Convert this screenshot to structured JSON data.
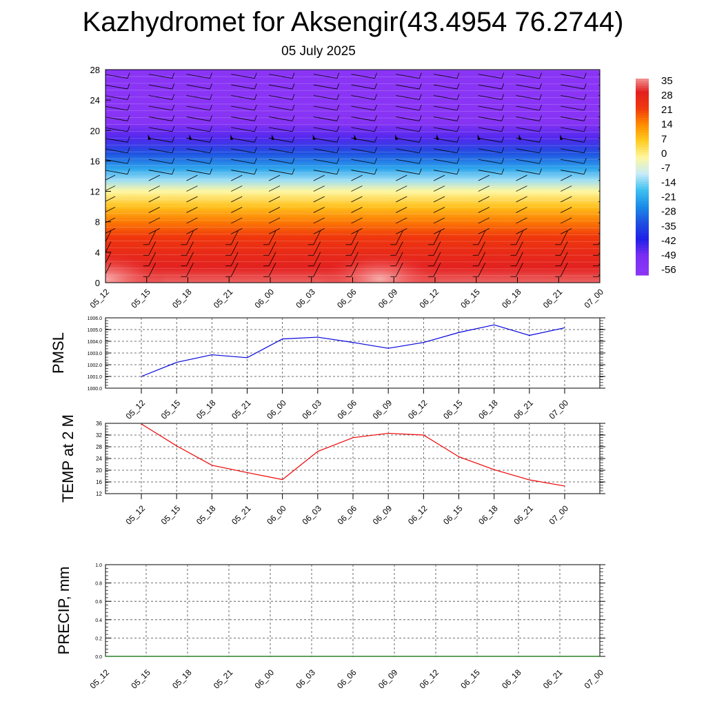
{
  "title": "Kazhydromet for Aksengir(43.4954 76.2744)",
  "subtitle": "05 July 2025",
  "time_labels": [
    "05_12",
    "05_15",
    "05_18",
    "05_21",
    "06_00",
    "06_03",
    "06_06",
    "06_09",
    "06_12",
    "06_15",
    "06_18",
    "06_21",
    "07_00"
  ],
  "chart_data": [
    {
      "type": "heatmap",
      "name": "temperature-cross-section",
      "x": [
        "05_12",
        "05_15",
        "05_18",
        "05_21",
        "06_00",
        "06_03",
        "06_06",
        "06_09",
        "06_12",
        "06_15",
        "06_18",
        "06_21",
        "07_00"
      ],
      "y_ticks": [
        0,
        4,
        8,
        12,
        16,
        20,
        24,
        28
      ],
      "ylim": [
        0,
        28
      ],
      "colorbar": {
        "labels": [
          "35",
          "28",
          "21",
          "14",
          "7",
          "0",
          "-7",
          "-14",
          "-21",
          "-28",
          "-35",
          "-42",
          "-49",
          "-56"
        ],
        "colors": [
          "#f7b0b0",
          "#e22020",
          "#f0380c",
          "#ff8c00",
          "#ffcc22",
          "#fff7a0",
          "#c8ecf8",
          "#40c0f0",
          "#1a8ce8",
          "#1f4fe0",
          "#2020e8",
          "#7a2ff2",
          "#8a35f5"
        ]
      },
      "profile": [
        {
          "h": 0,
          "t": 31
        },
        {
          "h": 2,
          "t": 27
        },
        {
          "h": 4,
          "t": 24
        },
        {
          "h": 6,
          "t": 20
        },
        {
          "h": 8,
          "t": 14
        },
        {
          "h": 10,
          "t": 6
        },
        {
          "h": 12,
          "t": -3
        },
        {
          "h": 13.5,
          "t": -13
        },
        {
          "h": 15,
          "t": -22
        },
        {
          "h": 17,
          "t": -33
        },
        {
          "h": 19,
          "t": -45
        },
        {
          "h": 21,
          "t": -54
        },
        {
          "h": 23,
          "t": -58
        },
        {
          "h": 28,
          "t": -58
        }
      ],
      "warm_spots": [
        {
          "x": "05_12",
          "h": 0.5,
          "t": 35
        },
        {
          "x": "06_09",
          "h": 0.5,
          "t": 33
        }
      ],
      "grid": false,
      "wind_barbs": true
    },
    {
      "type": "line",
      "name": "pmsl",
      "ylabel": "PMSL",
      "x": [
        "05_12",
        "05_15",
        "05_18",
        "05_21",
        "06_00",
        "06_03",
        "06_06",
        "06_09",
        "06_12",
        "06_15",
        "06_18",
        "06_21",
        "07_00"
      ],
      "values": [
        1001.0,
        1002.2,
        1002.85,
        1002.6,
        1004.2,
        1004.35,
        1003.9,
        1003.4,
        1003.9,
        1004.75,
        1005.4,
        1004.5,
        1005.15
      ],
      "ylim": [
        1000,
        1006
      ],
      "y_ticks": [
        "1000.0",
        "1001.0",
        "1002.0",
        "1003.0",
        "1004.0",
        "1005.0",
        "1006.0"
      ],
      "color": "#0000dd",
      "grid": true
    },
    {
      "type": "line",
      "name": "temp-2m",
      "ylabel": "TEMP at 2 M",
      "x": [
        "05_12",
        "05_15",
        "05_18",
        "05_21",
        "06_00",
        "06_03",
        "06_06",
        "06_09",
        "06_12",
        "06_15",
        "06_18",
        "06_21",
        "07_00"
      ],
      "values": [
        35.8,
        28.3,
        21.7,
        19.2,
        16.8,
        26.4,
        31.1,
        32.6,
        32.0,
        24.6,
        20.2,
        16.7,
        14.6
      ],
      "ylim": [
        12,
        36
      ],
      "y_ticks": [
        "12",
        "16",
        "20",
        "24",
        "28",
        "32",
        "36"
      ],
      "color": "#ee0000",
      "grid": true
    },
    {
      "type": "line",
      "name": "precip",
      "ylabel": "PRECIP, mm",
      "x": [
        "05_12",
        "05_15",
        "05_18",
        "05_21",
        "06_00",
        "06_03",
        "06_06",
        "06_09",
        "06_12",
        "06_15",
        "06_18",
        "06_21",
        "07_00"
      ],
      "values": [
        0,
        0,
        0,
        0,
        0,
        0,
        0,
        0,
        0,
        0,
        0,
        0,
        0
      ],
      "ylim": [
        0,
        1
      ],
      "y_ticks": [
        "0.0",
        "0.2",
        "0.4",
        "0.6",
        "0.8",
        "1.0"
      ],
      "color": "#006400",
      "grid": true
    }
  ]
}
